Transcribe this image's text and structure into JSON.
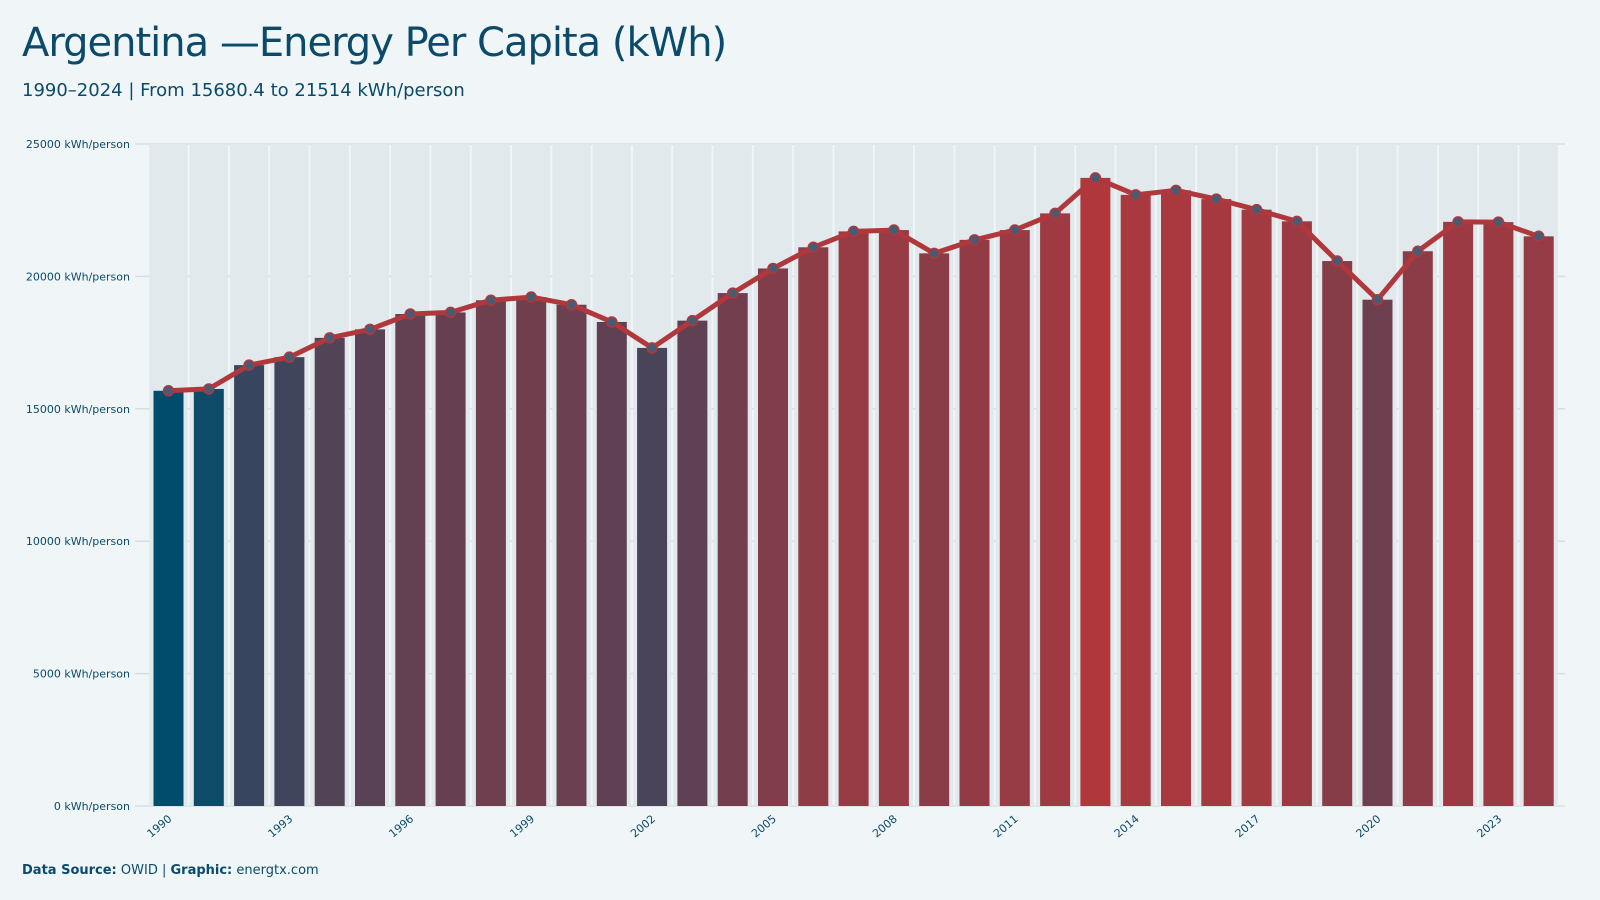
{
  "title": "Argentina —Energy Per Capita (kWh)",
  "subtitle": "1990–2024 | From 15680.4  to 21514 kWh/person",
  "footer": {
    "source_label": "Data Source:",
    "source_value": " OWID | ",
    "graphic_label": "Graphic:",
    "graphic_value": " energtx.com"
  },
  "colors": {
    "low": "#004c6d",
    "high": "#b0383d",
    "line": "#b0383d",
    "point_fill": "#4a5a72",
    "grid": "#d7dee2",
    "text": "#0b4a6b"
  },
  "chart_data": {
    "type": "bar",
    "title": "Argentina —Energy Per Capita (kWh)",
    "subtitle": "1990–2024 | From 15680.4  to 21514 kWh/person",
    "x": [
      1990,
      1991,
      1992,
      1993,
      1994,
      1995,
      1996,
      1997,
      1998,
      1999,
      2000,
      2001,
      2002,
      2003,
      2004,
      2005,
      2006,
      2007,
      2008,
      2009,
      2010,
      2011,
      2012,
      2013,
      2014,
      2015,
      2016,
      2017,
      2018,
      2019,
      2020,
      2021,
      2022,
      2023,
      2024
    ],
    "series": [
      {
        "values": [
          15680.4,
          15750,
          16650,
          16950,
          17680,
          18000,
          18580,
          18640,
          19100,
          19220,
          18930,
          18280,
          17300,
          18330,
          19370,
          20300,
          21100,
          21700,
          21750,
          20870,
          21380,
          21750,
          22380,
          23720,
          23080,
          23250,
          22920,
          22520,
          22080,
          20580,
          19120,
          20950,
          22060,
          22050,
          21514
        ]
      }
    ],
    "xticks": [
      1990,
      1993,
      1996,
      1999,
      2002,
      2005,
      2008,
      2011,
      2014,
      2017,
      2020,
      2023
    ],
    "yticks": [
      0,
      5000,
      10000,
      15000,
      20000,
      25000
    ],
    "ytick_suffix": " kWh/person",
    "ylim": [
      0,
      25000
    ],
    "grid": true,
    "overlay": "line-with-points"
  }
}
